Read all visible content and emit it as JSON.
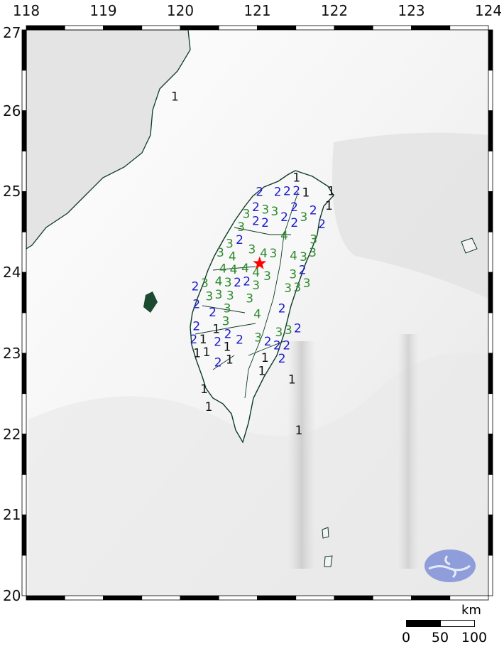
{
  "map": {
    "lon_ticks": [
      "118",
      "119",
      "120",
      "121",
      "122",
      "123",
      "124"
    ],
    "lat_ticks": [
      "27",
      "26",
      "25",
      "24",
      "23",
      "22",
      "21",
      "20"
    ],
    "extent": {
      "lon": [
        118,
        124
      ],
      "lat": [
        20,
        27
      ]
    },
    "epicenter": {
      "lon": 121.03,
      "lat": 24.11,
      "symbol": "star",
      "color": "#ff0000"
    },
    "intensity_colors": {
      "1": "#111111",
      "2": "#1a1acc",
      "3": "#2e8b2e",
      "4": "#2e8b2e"
    },
    "stations": [
      {
        "lon": 121.51,
        "lat": 25.15,
        "v": "1"
      },
      {
        "lon": 121.03,
        "lat": 24.99,
        "v": "2"
      },
      {
        "lon": 121.28,
        "lat": 24.99,
        "v": "2"
      },
      {
        "lon": 121.43,
        "lat": 25.01,
        "v": "2"
      },
      {
        "lon": 121.5,
        "lat": 25.01,
        "v": "2"
      },
      {
        "lon": 121.58,
        "lat": 24.98,
        "v": "1"
      },
      {
        "lon": 121.96,
        "lat": 25.0,
        "v": "1"
      },
      {
        "lon": 121.93,
        "lat": 24.82,
        "v": "1"
      },
      {
        "lon": 121.0,
        "lat": 24.8,
        "v": "2"
      },
      {
        "lon": 121.0,
        "lat": 24.63,
        "v": "2"
      },
      {
        "lon": 121.1,
        "lat": 24.75,
        "v": "3"
      },
      {
        "lon": 121.18,
        "lat": 24.75,
        "v": "3"
      },
      {
        "lon": 120.87,
        "lat": 24.7,
        "v": "3"
      },
      {
        "lon": 121.1,
        "lat": 24.63,
        "v": "2"
      },
      {
        "lon": 121.35,
        "lat": 24.68,
        "v": "2"
      },
      {
        "lon": 121.48,
        "lat": 24.8,
        "v": "2"
      },
      {
        "lon": 121.7,
        "lat": 24.76,
        "v": "2"
      },
      {
        "lon": 121.6,
        "lat": 24.68,
        "v": "3"
      },
      {
        "lon": 121.51,
        "lat": 24.61,
        "v": "2"
      },
      {
        "lon": 121.84,
        "lat": 24.59,
        "v": "2"
      },
      {
        "lon": 120.79,
        "lat": 24.55,
        "v": "3"
      },
      {
        "lon": 120.77,
        "lat": 24.42,
        "v": "2"
      },
      {
        "lon": 120.64,
        "lat": 24.34,
        "v": "3"
      },
      {
        "lon": 120.93,
        "lat": 24.28,
        "v": "3"
      },
      {
        "lon": 121.35,
        "lat": 24.45,
        "v": "4"
      },
      {
        "lon": 120.52,
        "lat": 24.24,
        "v": "3"
      },
      {
        "lon": 121.11,
        "lat": 24.23,
        "v": "4"
      },
      {
        "lon": 121.18,
        "lat": 24.23,
        "v": "3"
      },
      {
        "lon": 121.47,
        "lat": 24.2,
        "v": "4"
      },
      {
        "lon": 121.73,
        "lat": 24.36,
        "v": "3"
      },
      {
        "lon": 121.72,
        "lat": 24.28,
        "v": "3"
      },
      {
        "lon": 121.6,
        "lat": 24.13,
        "v": "3"
      },
      {
        "lon": 121.58,
        "lat": 24.04,
        "v": "2"
      },
      {
        "lon": 120.67,
        "lat": 24.14,
        "v": "4"
      },
      {
        "lon": 120.56,
        "lat": 24.02,
        "v": "4"
      },
      {
        "lon": 120.68,
        "lat": 24.02,
        "v": "4"
      },
      {
        "lon": 120.89,
        "lat": 24.02,
        "v": "4"
      },
      {
        "lon": 120.92,
        "lat": 23.98,
        "v": "4"
      },
      {
        "lon": 120.58,
        "lat": 23.88,
        "v": "4"
      },
      {
        "lon": 120.66,
        "lat": 23.88,
        "v": "3"
      },
      {
        "lon": 121.13,
        "lat": 23.95,
        "v": "3"
      },
      {
        "lon": 120.85,
        "lat": 23.91,
        "v": "2"
      },
      {
        "lon": 120.7,
        "lat": 23.83,
        "v": "2"
      },
      {
        "lon": 120.89,
        "lat": 23.82,
        "v": "3"
      },
      {
        "lon": 120.22,
        "lat": 23.82,
        "v": "2"
      },
      {
        "lon": 120.29,
        "lat": 23.86,
        "v": "3"
      },
      {
        "lon": 120.55,
        "lat": 23.72,
        "v": "3"
      },
      {
        "lon": 120.63,
        "lat": 23.72,
        "v": "3"
      },
      {
        "lon": 120.4,
        "lat": 23.7,
        "v": "3"
      },
      {
        "lon": 120.9,
        "lat": 23.7,
        "v": "3"
      },
      {
        "lon": 121.47,
        "lat": 23.95,
        "v": "3"
      },
      {
        "lon": 121.42,
        "lat": 23.81,
        "v": "3"
      },
      {
        "lon": 121.55,
        "lat": 23.82,
        "v": "3"
      },
      {
        "lon": 121.59,
        "lat": 23.9,
        "v": "3"
      },
      {
        "lon": 120.21,
        "lat": 23.6,
        "v": "2"
      },
      {
        "lon": 120.61,
        "lat": 23.56,
        "v": "3"
      },
      {
        "lon": 120.42,
        "lat": 23.5,
        "v": "2"
      },
      {
        "lon": 120.58,
        "lat": 23.43,
        "v": "3"
      },
      {
        "lon": 121.0,
        "lat": 23.48,
        "v": "4"
      },
      {
        "lon": 121.32,
        "lat": 23.55,
        "v": "2"
      },
      {
        "lon": 120.21,
        "lat": 23.32,
        "v": "2"
      },
      {
        "lon": 120.5,
        "lat": 23.27,
        "v": "1"
      },
      {
        "lon": 120.58,
        "lat": 23.23,
        "v": "2"
      },
      {
        "lon": 120.51,
        "lat": 23.17,
        "v": "2"
      },
      {
        "lon": 120.77,
        "lat": 23.16,
        "v": "2"
      },
      {
        "lon": 121.01,
        "lat": 23.19,
        "v": "3"
      },
      {
        "lon": 121.28,
        "lat": 23.19,
        "v": "3"
      },
      {
        "lon": 121.43,
        "lat": 23.28,
        "v": "3"
      },
      {
        "lon": 121.22,
        "lat": 23.14,
        "v": "2"
      },
      {
        "lon": 121.24,
        "lat": 23.1,
        "v": "2"
      },
      {
        "lon": 121.37,
        "lat": 23.09,
        "v": "2"
      },
      {
        "lon": 121.44,
        "lat": 23.3,
        "v": "2"
      },
      {
        "lon": 121.32,
        "lat": 22.98,
        "v": "2"
      },
      {
        "lon": 120.2,
        "lat": 23.16,
        "v": "2"
      },
      {
        "lon": 120.27,
        "lat": 23.14,
        "v": "1"
      },
      {
        "lon": 120.24,
        "lat": 23.02,
        "v": "1"
      },
      {
        "lon": 120.32,
        "lat": 23.02,
        "v": "1"
      },
      {
        "lon": 120.6,
        "lat": 23.06,
        "v": "1"
      },
      {
        "lon": 120.64,
        "lat": 22.97,
        "v": "1"
      },
      {
        "lon": 120.49,
        "lat": 22.88,
        "v": "2"
      },
      {
        "lon": 121.1,
        "lat": 22.9,
        "v": "1"
      },
      {
        "lon": 121.06,
        "lat": 22.81,
        "v": "1"
      },
      {
        "lon": 121.45,
        "lat": 22.67,
        "v": "1"
      },
      {
        "lon": 120.31,
        "lat": 22.55,
        "v": "1"
      },
      {
        "lon": 120.37,
        "lat": 22.33,
        "v": "1"
      },
      {
        "lon": 119.93,
        "lat": 26.17,
        "v": "1"
      },
      {
        "lon": 121.54,
        "lat": 22.04,
        "v": "1"
      }
    ],
    "logo": {
      "shape": "ellipse",
      "color": "#7f8fd8"
    }
  },
  "scalebar": {
    "unit": "km",
    "labels": [
      "0",
      "50",
      "100"
    ]
  }
}
